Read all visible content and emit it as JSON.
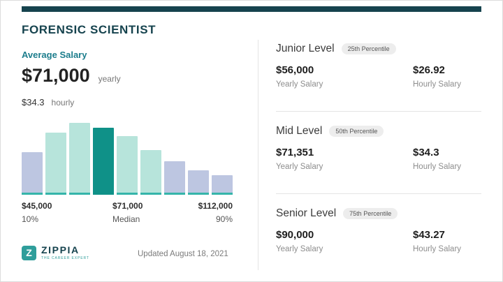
{
  "palette": {
    "brand_dark": "#16434e",
    "teal": "#1c7d8c",
    "bar_lavender": "#bdc6e1",
    "bar_mint": "#b7e4db",
    "bar_teal": "#0f9188",
    "bar_base": "#35b5aa",
    "badge_bg": "#ededed",
    "divider": "#e4e4e4",
    "logo_teal": "#2f9e9b"
  },
  "header": {
    "title": "FORENSIC SCIENTIST"
  },
  "summary": {
    "label": "Average Salary",
    "yearly_value": "$71,000",
    "yearly_unit": "yearly",
    "hourly_value": "$34.3",
    "hourly_unit": "hourly"
  },
  "chart_data": {
    "type": "bar",
    "title": "Forensic Scientist salary distribution",
    "values": [
      58,
      84,
      97,
      91,
      79,
      60,
      45,
      33,
      26
    ],
    "bar_colors": [
      "lavender",
      "mint",
      "mint",
      "highlight",
      "mint",
      "mint",
      "lavender",
      "lavender",
      "lavender"
    ],
    "ylim": [
      0,
      100
    ],
    "grid": false,
    "legend": false,
    "annotations": [
      {
        "salary": "$45,000",
        "label": "10%",
        "position": "left"
      },
      {
        "salary": "$71,000",
        "label": "Median",
        "position": "center"
      },
      {
        "salary": "$112,000",
        "label": "90%",
        "position": "right"
      }
    ]
  },
  "levels": [
    {
      "name": "Junior Level",
      "badge": "25th Percentile",
      "yearly": "$56,000",
      "yearly_label": "Yearly Salary",
      "hourly": "$26.92",
      "hourly_label": "Hourly Salary"
    },
    {
      "name": "Mid Level",
      "badge": "50th Percentile",
      "yearly": "$71,351",
      "yearly_label": "Yearly Salary",
      "hourly": "$34.3",
      "hourly_label": "Hourly Salary"
    },
    {
      "name": "Senior Level",
      "badge": "75th Percentile",
      "yearly": "$90,000",
      "yearly_label": "Yearly Salary",
      "hourly": "$43.27",
      "hourly_label": "Hourly Salary"
    }
  ],
  "footer": {
    "logo_letter": "Z",
    "logo_text": "ZIPPIA",
    "logo_tagline": "THE CAREER EXPERT",
    "updated": "Updated August 18, 2021"
  }
}
